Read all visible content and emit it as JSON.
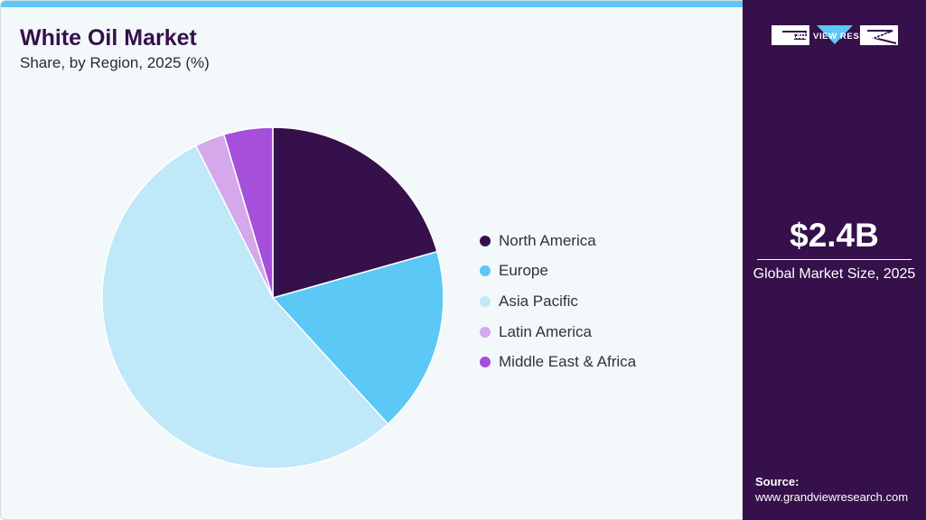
{
  "header": {
    "title": "White Oil Market",
    "subtitle": "Share, by Region, 2025 (%)"
  },
  "chart_data": {
    "type": "pie",
    "title": "White Oil Market",
    "subtitle": "Share, by Region, 2025 (%)",
    "categories": [
      "North America",
      "Europe",
      "Asia Pacific",
      "Latin America",
      "Middle East & Africa"
    ],
    "values": [
      20.5,
      17.5,
      54.0,
      2.8,
      4.6
    ],
    "colors": [
      "#35104a",
      "#5bc8f5",
      "#bfe8f8",
      "#d4a8ea",
      "#a54fdb"
    ],
    "start_angle_deg": 0,
    "direction": "clockwise",
    "legend_position": "right"
  },
  "sidebar": {
    "brand_name": "GRAND VIEW RESEARCH",
    "market_size_value": "$2.4B",
    "market_size_label": "Global Market Size, 2025",
    "source_label": "Source:",
    "source_url": "www.grandviewresearch.com"
  },
  "theme": {
    "accent": "#5bc8f5",
    "brand_dark": "#35104a"
  }
}
